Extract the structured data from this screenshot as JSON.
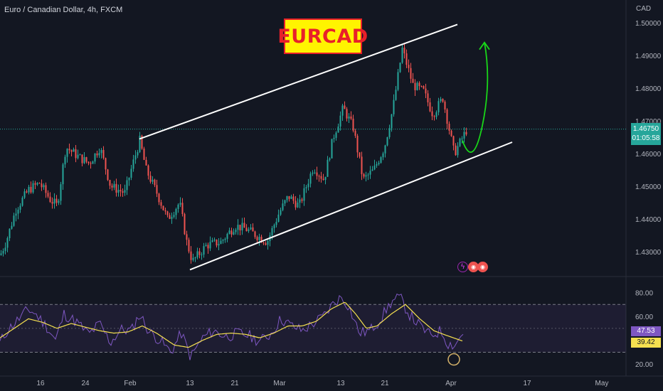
{
  "header": {
    "symbol": "Euro / Canadian Dollar, 4h, FXCM",
    "title": "EURCAD",
    "currency": "CAD"
  },
  "badges": {
    "price_value": "1.46750",
    "price_countdown": "01:05:58",
    "rsi_value": "47.53",
    "rsi_ma_value": "39.42"
  },
  "colors": {
    "background": "#131722",
    "up_candle": "#26a69a",
    "down_candle": "#ef5350",
    "rsi_line": "#7e57c2",
    "rsi_ma": "#f5e050",
    "channel": "#ffffff",
    "arrow": "#19d619",
    "price_badge": "#26a69a",
    "title_fill": "#fff400",
    "title_text": "#e8202a"
  },
  "icons": [
    "lightning-icon",
    "flag-icon"
  ],
  "chart_data": [
    {
      "type": "candlestick",
      "title": "EURCAD",
      "subtitle": "Euro / Canadian Dollar, 4h, FXCM",
      "ylim": [
        1.4235,
        1.5035
      ],
      "y_ticks": [
        "1.43000",
        "1.44000",
        "1.45000",
        "1.46000",
        "1.47000",
        "1.48000",
        "1.49000",
        "1.50000"
      ],
      "x_tick_labels": [
        "16",
        "24",
        "Feb",
        "13",
        "21",
        "Mar",
        "13",
        "21",
        "Apr",
        "17",
        "May"
      ],
      "price_path": [
        [
          0,
          1.429
        ],
        [
          8,
          1.433
        ],
        [
          22,
          1.443
        ],
        [
          40,
          1.449
        ],
        [
          55,
          1.451
        ],
        [
          70,
          1.446
        ],
        [
          80,
          1.444
        ],
        [
          92,
          1.462
        ],
        [
          110,
          1.459
        ],
        [
          125,
          1.457
        ],
        [
          140,
          1.462
        ],
        [
          155,
          1.45
        ],
        [
          175,
          1.448
        ],
        [
          185,
          1.456
        ],
        [
          196,
          1.464
        ],
        [
          205,
          1.455
        ],
        [
          220,
          1.448
        ],
        [
          235,
          1.44
        ],
        [
          252,
          1.445
        ],
        [
          262,
          1.433
        ],
        [
          270,
          1.427
        ],
        [
          290,
          1.432
        ],
        [
          310,
          1.433
        ],
        [
          330,
          1.438
        ],
        [
          345,
          1.437
        ],
        [
          360,
          1.435
        ],
        [
          375,
          1.433
        ],
        [
          392,
          1.442
        ],
        [
          405,
          1.447
        ],
        [
          420,
          1.444
        ],
        [
          440,
          1.456
        ],
        [
          455,
          1.452
        ],
        [
          468,
          1.465
        ],
        [
          482,
          1.474
        ],
        [
          496,
          1.468
        ],
        [
          510,
          1.452
        ],
        [
          525,
          1.455
        ],
        [
          540,
          1.462
        ],
        [
          552,
          1.474
        ],
        [
          565,
          1.492
        ],
        [
          580,
          1.481
        ],
        [
          595,
          1.479
        ],
        [
          608,
          1.472
        ],
        [
          622,
          1.477
        ],
        [
          638,
          1.46
        ],
        [
          650,
          1.465
        ],
        [
          656,
          1.4675
        ]
      ],
      "channel_upper": [
        [
          196,
          1.4645
        ],
        [
          643,
          1.4995
        ]
      ],
      "channel_lower": [
        [
          267,
          1.4245
        ],
        [
          720,
          1.4635
        ]
      ],
      "projection": [
        [
          650,
          1.464
        ],
        [
          665,
          1.4605
        ],
        [
          678,
          1.4685
        ],
        [
          681,
          1.494
        ]
      ],
      "last_price": 1.4675
    },
    {
      "type": "line",
      "title": "RSI",
      "ylim": [
        13,
        88
      ],
      "y_ticks": [
        "20.00",
        "40.00",
        "60.00",
        "80.00"
      ],
      "bands": [
        30,
        70
      ],
      "midline": 50,
      "series": [
        {
          "values": [
            [
              0,
              38
            ],
            [
              10,
              48
            ],
            [
              25,
              57
            ],
            [
              40,
              66
            ],
            [
              50,
              62
            ],
            [
              65,
              52
            ],
            [
              78,
              40
            ],
            [
              90,
              62
            ],
            [
              108,
              55
            ],
            [
              125,
              45
            ],
            [
              140,
              54
            ],
            [
              155,
              38
            ],
            [
              170,
              49
            ],
            [
              185,
              48
            ],
            [
              196,
              62
            ],
            [
              210,
              47
            ],
            [
              225,
              40
            ],
            [
              240,
              30
            ],
            [
              255,
              46
            ],
            [
              268,
              26
            ],
            [
              285,
              42
            ],
            [
              300,
              48
            ],
            [
              318,
              43
            ],
            [
              335,
              46
            ],
            [
              350,
              44
            ],
            [
              365,
              39
            ],
            [
              380,
              45
            ],
            [
              395,
              58
            ],
            [
              410,
              52
            ],
            [
              425,
              48
            ],
            [
              440,
              54
            ],
            [
              455,
              60
            ],
            [
              470,
              72
            ],
            [
              480,
              76
            ],
            [
              490,
              69
            ],
            [
              505,
              46
            ],
            [
              520,
              48
            ],
            [
              535,
              58
            ],
            [
              550,
              72
            ],
            [
              562,
              76
            ],
            [
              575,
              62
            ],
            [
              590,
              52
            ],
            [
              605,
              44
            ],
            [
              620,
              48
            ],
            [
              630,
              37
            ],
            [
              640,
              36
            ],
            [
              652,
              48
            ]
          ]
        },
        {
          "values": [
            [
              0,
              42
            ],
            [
              20,
              50
            ],
            [
              40,
              58
            ],
            [
              60,
              55
            ],
            [
              80,
              50
            ],
            [
              100,
              54
            ],
            [
              120,
              51
            ],
            [
              140,
              48
            ],
            [
              160,
              46
            ],
            [
              180,
              47
            ],
            [
              200,
              52
            ],
            [
              220,
              46
            ],
            [
              245,
              36
            ],
            [
              265,
              34
            ],
            [
              285,
              40
            ],
            [
              305,
              45
            ],
            [
              325,
              46
            ],
            [
              345,
              45
            ],
            [
              365,
              42
            ],
            [
              385,
              46
            ],
            [
              405,
              52
            ],
            [
              425,
              52
            ],
            [
              445,
              56
            ],
            [
              465,
              66
            ],
            [
              485,
              72
            ],
            [
              500,
              62
            ],
            [
              515,
              50
            ],
            [
              530,
              52
            ],
            [
              550,
              62
            ],
            [
              570,
              70
            ],
            [
              590,
              58
            ],
            [
              610,
              48
            ],
            [
              628,
              44
            ],
            [
              650,
              39.4
            ]
          ]
        }
      ],
      "last_value": 47.53,
      "last_ma_value": 39.42
    }
  ]
}
